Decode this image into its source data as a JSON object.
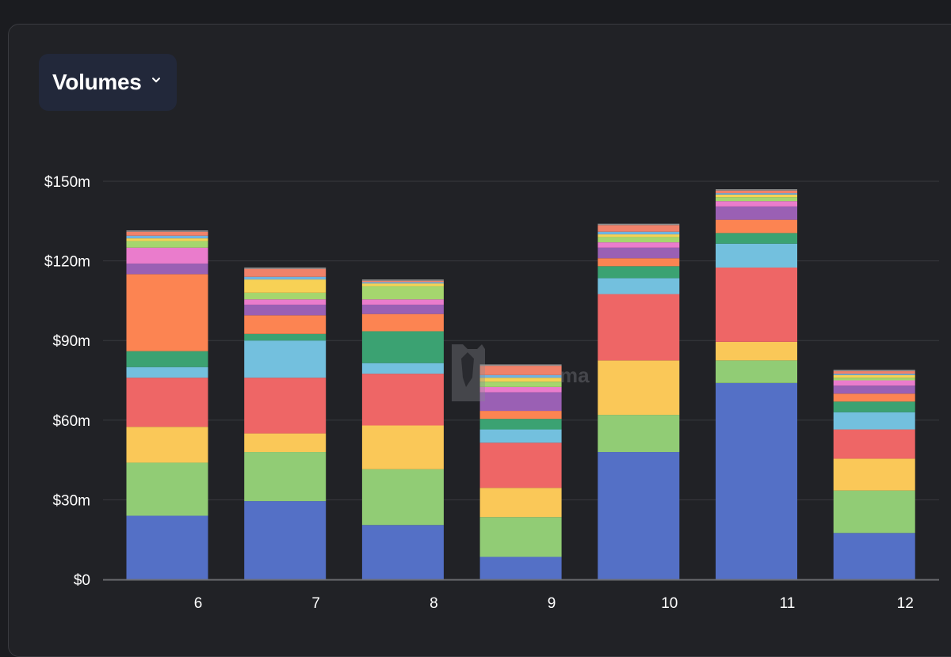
{
  "dropdown": {
    "label": "Volumes",
    "icon": "chevron-down-icon"
  },
  "watermark": {
    "text": "ma",
    "icon": "llama-logo-icon"
  },
  "colors": {
    "page_background": "#1b1c20",
    "card_background": "#212226",
    "grid": "#393a3f",
    "axis": "#6b6c70"
  },
  "chart_data": {
    "type": "bar",
    "stacked": true,
    "grid": true,
    "categories": [
      "6",
      "7",
      "8",
      "9",
      "10",
      "11",
      "12"
    ],
    "ylim": [
      0,
      150
    ],
    "y_ticks": [
      0,
      30,
      60,
      90,
      120,
      150
    ],
    "y_tick_labels": [
      "$0",
      "$30m",
      "$60m",
      "$90m",
      "$120m",
      "$150m"
    ],
    "xlabel": "",
    "ylabel": "",
    "title": "",
    "series": [
      {
        "color": "#5470c6",
        "values": [
          24,
          29.5,
          20.5,
          8.5,
          48,
          74,
          17.5
        ]
      },
      {
        "color": "#91cc75",
        "values": [
          20,
          18.5,
          21,
          15,
          14,
          8.5,
          16
        ]
      },
      {
        "color": "#fac858",
        "values": [
          13.5,
          7,
          16.5,
          11,
          20.5,
          7,
          12
        ]
      },
      {
        "color": "#ee6666",
        "values": [
          18.5,
          21,
          19.5,
          17,
          25,
          28,
          11
        ]
      },
      {
        "color": "#73c0de",
        "values": [
          4,
          14,
          4,
          5,
          6,
          9,
          6.5
        ]
      },
      {
        "color": "#3ba272",
        "values": [
          6,
          2.5,
          12,
          4,
          4.5,
          4,
          4
        ]
      },
      {
        "color": "#fc8452",
        "values": [
          29,
          7,
          6.5,
          3,
          3,
          5,
          3
        ]
      },
      {
        "color": "#9a60b4",
        "values": [
          4,
          4,
          3.5,
          7,
          4,
          5,
          3
        ]
      },
      {
        "color": "#ea7ccc",
        "values": [
          6,
          2,
          2,
          2,
          2,
          2,
          2
        ]
      },
      {
        "color": "#a5d66e",
        "values": [
          2.5,
          2.5,
          5,
          2,
          2,
          1.5,
          1
        ]
      },
      {
        "color": "#f7d155",
        "values": [
          1,
          5,
          1,
          1.5,
          1,
          1,
          1
        ]
      },
      {
        "color": "#6fb3e0",
        "values": [
          1,
          1,
          0.5,
          1,
          1,
          0.5,
          0.5
        ]
      },
      {
        "color": "#f0826a",
        "values": [
          1.5,
          3,
          0.5,
          3.5,
          2.5,
          1,
          1
        ]
      },
      {
        "color": "#8e8e8e",
        "values": [
          0.5,
          0.5,
          0.5,
          0.5,
          0.5,
          0.5,
          0.5
        ]
      }
    ]
  }
}
